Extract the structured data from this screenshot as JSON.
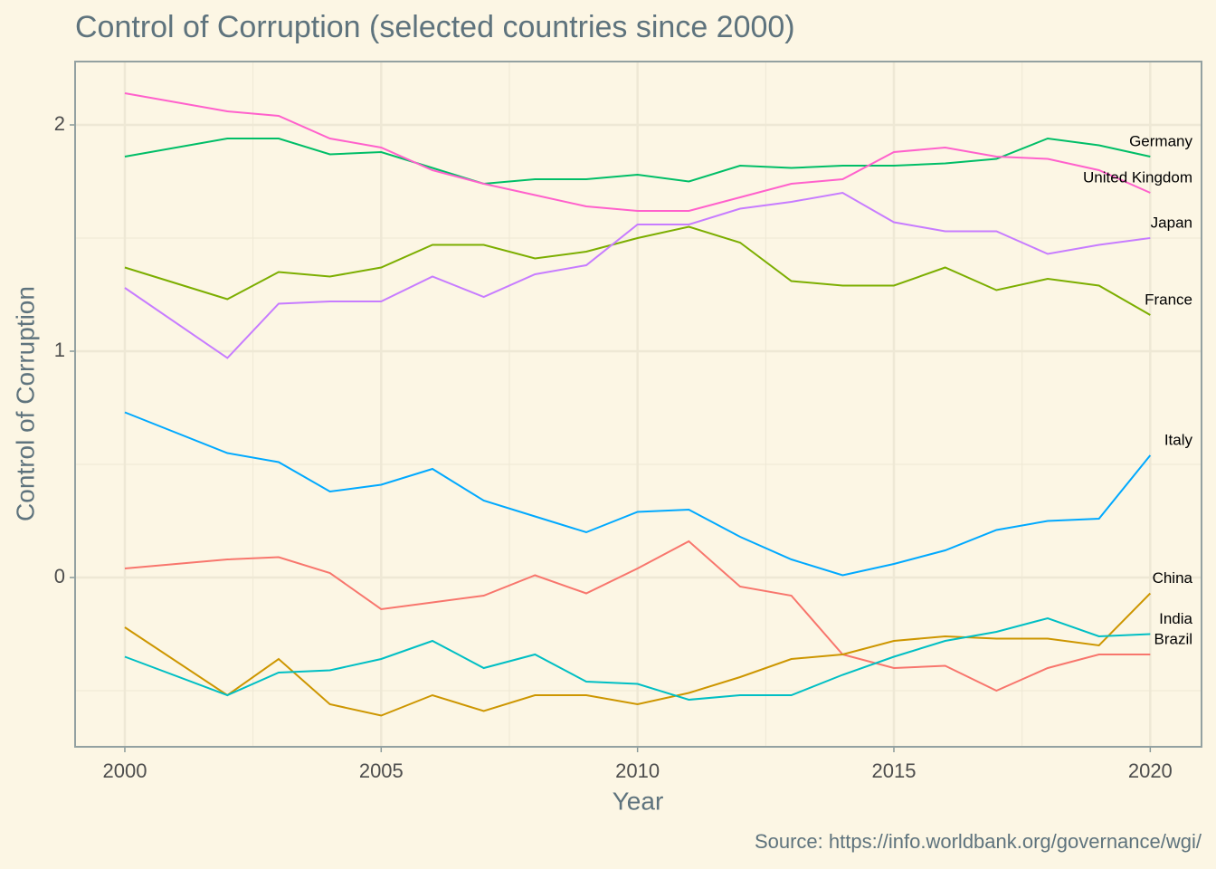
{
  "chart_data": {
    "type": "line",
    "title": "Control of Corruption (selected countries since 2000)",
    "x_label": "Year",
    "y_label": "Control of Corruption",
    "caption": "Source: https://info.worldbank.org/governance/wgi/",
    "x": [
      2000,
      2002,
      2003,
      2004,
      2005,
      2006,
      2007,
      2008,
      2009,
      2010,
      2011,
      2012,
      2013,
      2014,
      2015,
      2016,
      2017,
      2018,
      2019,
      2020
    ],
    "xlim": [
      1999.03,
      2021.0
    ],
    "xticks": [
      2000,
      2005,
      2010,
      2015,
      2020
    ],
    "minor_xticks": [
      2002.5,
      2007.5,
      2012.5,
      2017.5
    ],
    "ylim": [
      -0.748,
      2.28
    ],
    "yticks": [
      0,
      1,
      2
    ],
    "minor_yticks": [
      -0.5,
      0.5,
      1.5
    ],
    "grid": true,
    "series": [
      {
        "name": "Brazil",
        "color": "#F8766D",
        "values": [
          0.04,
          0.08,
          0.09,
          0.02,
          -0.14,
          -0.11,
          -0.08,
          0.01,
          -0.07,
          0.04,
          0.16,
          -0.04,
          -0.08,
          -0.34,
          -0.4,
          -0.39,
          -0.5,
          -0.4,
          -0.34,
          -0.34
        ]
      },
      {
        "name": "China",
        "color": "#CD9600",
        "values": [
          -0.22,
          -0.52,
          -0.36,
          -0.56,
          -0.61,
          -0.52,
          -0.59,
          -0.52,
          -0.52,
          -0.56,
          -0.51,
          -0.44,
          -0.36,
          -0.34,
          -0.28,
          -0.26,
          -0.27,
          -0.27,
          -0.3,
          -0.07
        ]
      },
      {
        "name": "France",
        "color": "#7CAE00",
        "values": [
          1.37,
          1.23,
          1.35,
          1.33,
          1.37,
          1.47,
          1.47,
          1.41,
          1.44,
          1.5,
          1.55,
          1.48,
          1.31,
          1.29,
          1.29,
          1.37,
          1.27,
          1.32,
          1.29,
          1.16
        ]
      },
      {
        "name": "Germany",
        "color": "#00BE67",
        "values": [
          1.86,
          1.94,
          1.94,
          1.87,
          1.88,
          1.81,
          1.74,
          1.76,
          1.76,
          1.78,
          1.75,
          1.82,
          1.81,
          1.82,
          1.82,
          1.83,
          1.85,
          1.94,
          1.91,
          1.86
        ]
      },
      {
        "name": "India",
        "color": "#00BFC4",
        "values": [
          -0.35,
          -0.52,
          -0.42,
          -0.41,
          -0.36,
          -0.28,
          -0.4,
          -0.34,
          -0.46,
          -0.47,
          -0.54,
          -0.52,
          -0.52,
          -0.43,
          -0.35,
          -0.28,
          -0.24,
          -0.18,
          -0.26,
          -0.25
        ]
      },
      {
        "name": "Italy",
        "color": "#00A9FF",
        "values": [
          0.73,
          0.55,
          0.51,
          0.38,
          0.41,
          0.48,
          0.34,
          0.27,
          0.2,
          0.29,
          0.3,
          0.18,
          0.08,
          0.01,
          0.06,
          0.12,
          0.21,
          0.25,
          0.26,
          0.54
        ]
      },
      {
        "name": "Japan",
        "color": "#C77CFF",
        "values": [
          1.28,
          0.97,
          1.21,
          1.22,
          1.22,
          1.33,
          1.24,
          1.34,
          1.38,
          1.56,
          1.56,
          1.63,
          1.66,
          1.7,
          1.57,
          1.53,
          1.53,
          1.43,
          1.47,
          1.5
        ]
      },
      {
        "name": "United Kingdom",
        "color": "#FF61CC",
        "values": [
          2.14,
          2.06,
          2.04,
          1.94,
          1.9,
          1.8,
          1.74,
          1.69,
          1.64,
          1.62,
          1.62,
          1.68,
          1.74,
          1.76,
          1.88,
          1.9,
          1.86,
          1.85,
          1.8,
          1.7
        ]
      }
    ]
  }
}
